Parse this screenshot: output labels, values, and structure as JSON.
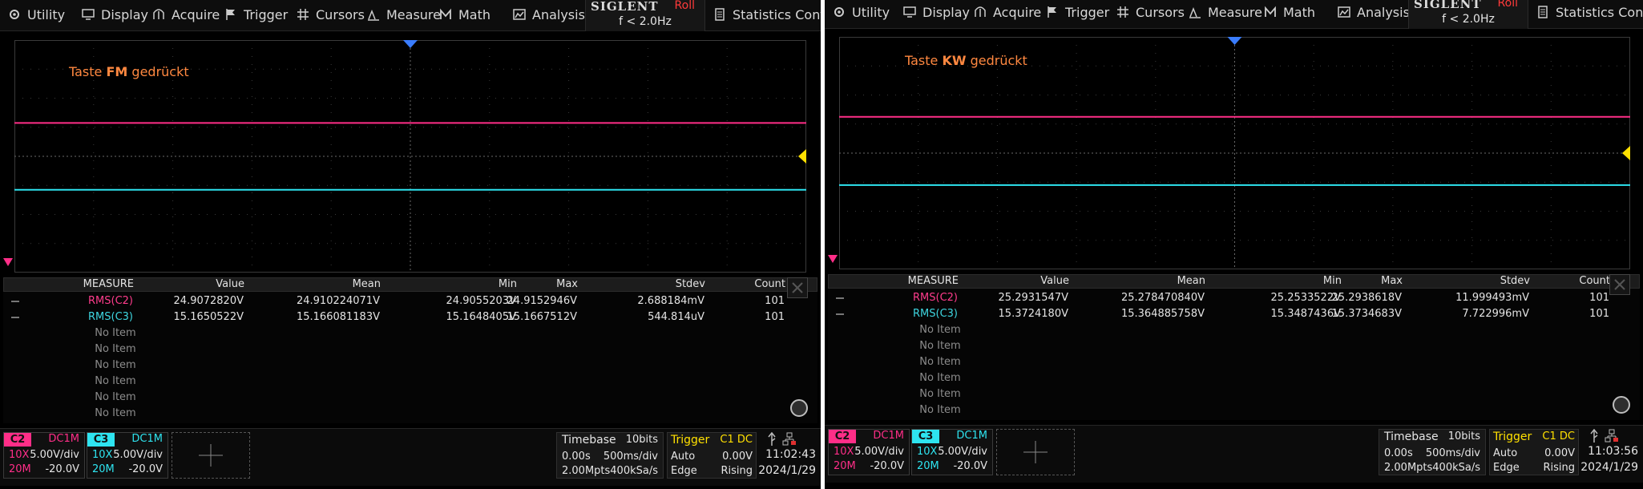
{
  "screens": [
    {
      "menu": [
        "Utility",
        "Display",
        "Acquire",
        "Trigger",
        "Cursors",
        "Measure",
        "Math",
        "Analysis"
      ],
      "menu_icons": [
        "gear-icon",
        "monitor-icon",
        "acquire-icon",
        "flag-icon",
        "cursors-icon",
        "measure-icon",
        "math-icon",
        "analysis-icon"
      ],
      "brand": "SIGLENT",
      "mode": "Roll",
      "freq": "f < 2.0Hz",
      "stats_label": "Statistics Config",
      "annotation": {
        "pre": "Taste ",
        "bold": "FM",
        "post": " gedrückt"
      },
      "measure_headers": [
        "MEASURE",
        "Value",
        "Mean",
        "Min",
        "Max",
        "Stdev",
        "Count"
      ],
      "measure_rows": [
        {
          "name": "RMS(C2)",
          "color": "#ff3c8c",
          "value": "24.9072820V",
          "mean": "24.910224071V",
          "min": "24.9055203V",
          "max": "24.9152946V",
          "stdev": "2.688184mV",
          "count": "101"
        },
        {
          "name": "RMS(C3)",
          "color": "#3ed6e0",
          "value": "15.1650522V",
          "mean": "15.166081183V",
          "min": "15.1648405V",
          "max": "15.1667512V",
          "stdev": "544.814uV",
          "count": "101"
        }
      ],
      "no_items": [
        "No Item",
        "No Item",
        "No Item",
        "No Item",
        "No Item",
        "No Item"
      ],
      "ch2": {
        "tag": "C2",
        "coupling": "DC1M",
        "probe": "10X",
        "scale": "5.00V/div",
        "bw": "20M",
        "offset": "-20.0V",
        "color": "#ff2e88"
      },
      "ch3": {
        "tag": "C3",
        "coupling": "DC1M",
        "probe": "10X",
        "scale": "5.00V/div",
        "bw": "20M",
        "offset": "-20.0V",
        "color": "#2ee4f0"
      },
      "timebase": {
        "label": "Timebase",
        "bits": "10bits",
        "delay": "0.00s",
        "scale": "500ms/div",
        "points": "2.00Mpts",
        "rate": "400kSa/s"
      },
      "trigger": {
        "label": "Trigger",
        "source": "C1 DC",
        "mode": "Auto",
        "level": "0.00V",
        "type": "Edge",
        "slope": "Rising"
      },
      "time": "11:02:43",
      "date": "2024/1/29",
      "trace_levels_div": {
        "c2": 1.15,
        "c3": -1.15
      }
    },
    {
      "menu": [
        "Utility",
        "Display",
        "Acquire",
        "Trigger",
        "Cursors",
        "Measure",
        "Math",
        "Analysis"
      ],
      "menu_icons": [
        "gear-icon",
        "monitor-icon",
        "acquire-icon",
        "flag-icon",
        "cursors-icon",
        "measure-icon",
        "math-icon",
        "analysis-icon"
      ],
      "brand": "SIGLENT",
      "mode": "Roll",
      "freq": "f < 2.0Hz",
      "stats_label": "Statistics Config",
      "annotation": {
        "pre": "Taste ",
        "bold": "KW",
        "post": " gedrückt"
      },
      "measure_headers": [
        "MEASURE",
        "Value",
        "Mean",
        "Min",
        "Max",
        "Stdev",
        "Count"
      ],
      "measure_rows": [
        {
          "name": "RMS(C2)",
          "color": "#ff3c8c",
          "value": "25.2931547V",
          "mean": "25.278470840V",
          "min": "25.2533522V",
          "max": "25.2938618V",
          "stdev": "11.999493mV",
          "count": "101"
        },
        {
          "name": "RMS(C3)",
          "color": "#3ed6e0",
          "value": "15.3724180V",
          "mean": "15.364885758V",
          "min": "15.3487436V",
          "max": "15.3734683V",
          "stdev": "7.722996mV",
          "count": "101"
        }
      ],
      "no_items": [
        "No Item",
        "No Item",
        "No Item",
        "No Item",
        "No Item",
        "No Item"
      ],
      "ch2": {
        "tag": "C2",
        "coupling": "DC1M",
        "probe": "10X",
        "scale": "5.00V/div",
        "bw": "20M",
        "offset": "-20.0V",
        "color": "#ff2e88"
      },
      "ch3": {
        "tag": "C3",
        "coupling": "DC1M",
        "probe": "10X",
        "scale": "5.00V/div",
        "bw": "20M",
        "offset": "-20.0V",
        "color": "#2ee4f0"
      },
      "timebase": {
        "label": "Timebase",
        "bits": "10bits",
        "delay": "0.00s",
        "scale": "500ms/div",
        "points": "2.00Mpts",
        "rate": "400kSa/s"
      },
      "trigger": {
        "label": "Trigger",
        "source": "C1 DC",
        "mode": "Auto",
        "level": "0.00V",
        "type": "Edge",
        "slope": "Rising"
      },
      "time": "11:03:56",
      "date": "2024/1/29",
      "trace_levels_div": {
        "c2": 1.25,
        "c3": -1.1
      }
    }
  ]
}
